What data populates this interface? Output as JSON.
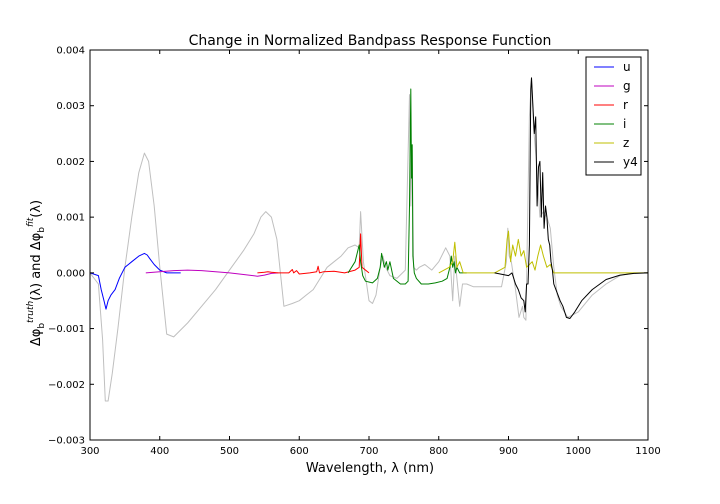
{
  "chart_data": {
    "type": "line",
    "title": "Change in Normalized Bandpass Response Function",
    "xlabel": "Wavelength, λ (nm)",
    "ylabel_parts": [
      "Δφ",
      "b",
      "truth",
      "(λ) and Δφ",
      "b",
      "fit",
      "(λ)"
    ],
    "xlim": [
      300,
      1100
    ],
    "ylim": [
      -0.003,
      0.004
    ],
    "x_ticks": [
      300,
      400,
      500,
      600,
      700,
      800,
      900,
      1000,
      1100
    ],
    "x_tick_labels": [
      "300",
      "400",
      "500",
      "600",
      "700",
      "800",
      "900",
      "1000",
      "1100"
    ],
    "y_ticks": [
      -0.003,
      -0.002,
      -0.001,
      0.0,
      0.001,
      0.002,
      0.003,
      0.004
    ],
    "y_tick_labels": [
      "−0.003",
      "−0.002",
      "−0.001",
      "0.000",
      "0.001",
      "0.002",
      "0.003",
      "0.004"
    ],
    "grid": false,
    "legend_position": "top-right",
    "background_series": {
      "color": "#bfbfbf",
      "x": [
        300,
        312,
        318,
        322,
        326,
        332,
        340,
        350,
        360,
        370,
        378,
        384,
        392,
        400,
        410,
        420,
        440,
        460,
        480,
        500,
        520,
        535,
        545,
        552,
        560,
        568,
        578,
        590,
        600,
        610,
        620,
        630,
        640,
        650,
        660,
        670,
        680,
        686,
        688,
        692,
        700,
        705,
        710,
        716,
        720,
        724,
        730,
        740,
        752,
        758,
        760,
        762,
        764,
        768,
        772,
        780,
        790,
        800,
        810,
        816,
        820,
        823,
        826,
        830,
        834,
        840,
        850,
        860,
        870,
        880,
        890,
        897,
        899,
        901,
        904,
        910,
        915,
        920,
        922,
        925,
        930,
        933,
        936,
        940,
        945,
        950,
        955,
        960,
        965,
        970,
        975,
        985,
        1000,
        1020,
        1040,
        1060,
        1080,
        1100
      ],
      "y": [
        0,
        -0.0002,
        -0.0012,
        -0.0023,
        -0.0023,
        -0.0018,
        -0.001,
        0.0001,
        0.001,
        0.0018,
        0.00215,
        0.002,
        0.0012,
        0.0001,
        -0.0011,
        -0.00115,
        -0.0009,
        -0.0006,
        -0.0003,
        5e-05,
        0.0004,
        0.0007,
        0.001,
        0.0011,
        0.001,
        0.0006,
        -0.0006,
        -0.00055,
        -0.0005,
        -0.0004,
        -0.0003,
        -0.0001,
        0.0001,
        0.0002,
        0.0003,
        0.00045,
        0.0005,
        0.00045,
        0.0011,
        0.0002,
        -0.0005,
        -0.00055,
        -0.0004,
        0.0001,
        0.0003,
        0.0001,
        -5e-05,
        -0.0001,
        5e-05,
        0.0032,
        0.0012,
        0.0022,
        0.0001,
        5e-05,
        0.0001,
        0.00015,
        5e-05,
        0.0002,
        0.00045,
        0.0003,
        -0.0005,
        0.0003,
        -0.0001,
        -0.0006,
        -0.0002,
        -0.0002,
        -0.00025,
        -0.00025,
        -0.00025,
        -0.00025,
        -0.00025,
        0.0002,
        0.0008,
        0.0003,
        0.0002,
        -0.0003,
        -0.0008,
        -0.0006,
        -0.0008,
        -0.00085,
        0.0028,
        0.0035,
        0.0026,
        0.002,
        0.001,
        0.0011,
        0.001,
        0.0008,
        0.0001,
        -0.0004,
        -0.0006,
        -0.0008,
        -0.0007,
        -0.0004,
        -0.0002,
        -5e-05,
        0,
        0
      ]
    },
    "series": [
      {
        "name": "u",
        "color": "#0000ff",
        "x": [
          300,
          312,
          316,
          320,
          323,
          326,
          330,
          336,
          342,
          350,
          360,
          370,
          378,
          382,
          386,
          392,
          400,
          410,
          420,
          430
        ],
        "y": [
          0,
          -5e-05,
          -0.0003,
          -0.0005,
          -0.00065,
          -0.0005,
          -0.0004,
          -0.0003,
          -0.0001,
          0.0001,
          0.0002,
          0.0003,
          0.00035,
          0.00032,
          0.00025,
          0.00015,
          5e-05,
          0.0,
          0,
          0
        ]
      },
      {
        "name": "g",
        "color": "#bf00bf",
        "x": [
          380,
          400,
          420,
          440,
          460,
          480,
          500,
          520,
          540,
          550,
          560,
          570
        ],
        "y": [
          0,
          2e-05,
          4e-05,
          5e-05,
          4e-05,
          2e-05,
          0.0,
          -3e-05,
          -6e-05,
          -4e-05,
          -1e-05,
          0
        ]
      },
      {
        "name": "r",
        "color": "#ff0000",
        "x": [
          540,
          550,
          555,
          560,
          570,
          585,
          590,
          592,
          596,
          600,
          615,
          625,
          627,
          629,
          635,
          650,
          665,
          680,
          686,
          688,
          690,
          700
        ],
        "y": [
          0,
          1e-05,
          2e-05,
          1e-05,
          0.0,
          0.0,
          6e-05,
          0.0,
          4e-05,
          -2e-05,
          0.0,
          2e-05,
          0.00012,
          0.0,
          2e-05,
          3e-05,
          0.0,
          5e-05,
          0.0001,
          0.0007,
          0.0001,
          0
        ]
      },
      {
        "name": "i",
        "color": "#008000",
        "x": [
          670,
          680,
          686,
          688,
          691,
          695,
          705,
          712,
          716,
          718,
          722,
          725,
          727,
          730,
          735,
          745,
          752,
          756,
          758,
          760,
          761,
          762,
          763,
          765,
          768,
          775,
          785,
          795,
          805,
          812,
          816,
          818,
          820,
          822,
          824,
          826,
          830,
          840
        ],
        "y": [
          0,
          0.0002,
          0.0005,
          0.0002,
          -5e-05,
          -0.00015,
          -0.00018,
          -0.0001,
          0.0001,
          0.00035,
          0.0001,
          0.0002,
          5e-05,
          0.0002,
          -0.0001,
          -0.0002,
          -0.0002,
          -0.00015,
          0.0012,
          0.0033,
          0.0017,
          0.0023,
          0.0003,
          0.0,
          -0.0001,
          -0.0002,
          -0.0002,
          -0.00018,
          -0.00015,
          -0.0001,
          0.0001,
          0.0003,
          0.0001,
          0.0002,
          0.0,
          0.0001,
          0.0,
          0
        ]
      },
      {
        "name": "z",
        "color": "#bfbf00",
        "x": [
          800,
          815,
          820,
          823,
          826,
          830,
          835,
          840,
          860,
          880,
          895,
          898,
          900,
          903,
          906,
          910,
          914,
          918,
          922,
          926,
          930,
          934,
          938,
          942,
          946,
          950,
          955,
          960,
          965,
          970,
          980,
          1000,
          1050,
          1100
        ],
        "y": [
          0,
          0.0001,
          0.0002,
          0.00055,
          0.0001,
          0.0002,
          0.0,
          0,
          0,
          0,
          0.0001,
          0.0006,
          0.00075,
          0.0002,
          0.0005,
          0.0003,
          0.0006,
          0.0003,
          0.0004,
          0.0001,
          0.00015,
          0.0002,
          5e-05,
          0.0003,
          0.0005,
          0.0003,
          0.0001,
          0.00015,
          0.0,
          0,
          0,
          0,
          0,
          0
        ]
      },
      {
        "name": "y4",
        "color": "#000000",
        "x": [
          880,
          900,
          905,
          910,
          914,
          918,
          922,
          924,
          926,
          928,
          930,
          932,
          933,
          935,
          937,
          939,
          941,
          943,
          945,
          947,
          949,
          951,
          953,
          955,
          957,
          959,
          961,
          963,
          965,
          968,
          971,
          974,
          978,
          983,
          988,
          995,
          1005,
          1020,
          1040,
          1060,
          1080,
          1100
        ],
        "y": [
          0,
          -5e-05,
          0.0,
          -0.0002,
          -0.0003,
          -0.00045,
          -0.0005,
          -0.0007,
          -0.0002,
          -0.0002,
          0.0005,
          0.0033,
          0.0035,
          0.003,
          0.0025,
          0.0028,
          0.0012,
          0.0019,
          0.002,
          0.001,
          0.0018,
          0.0008,
          0.0012,
          0.001,
          0.0006,
          0.0005,
          0.0002,
          5e-05,
          -0.0002,
          -0.0003,
          -0.0004,
          -0.0005,
          -0.0006,
          -0.0008,
          -0.00082,
          -0.0007,
          -0.0005,
          -0.0003,
          -0.00012,
          -4e-05,
          -1e-05,
          0
        ]
      }
    ]
  }
}
